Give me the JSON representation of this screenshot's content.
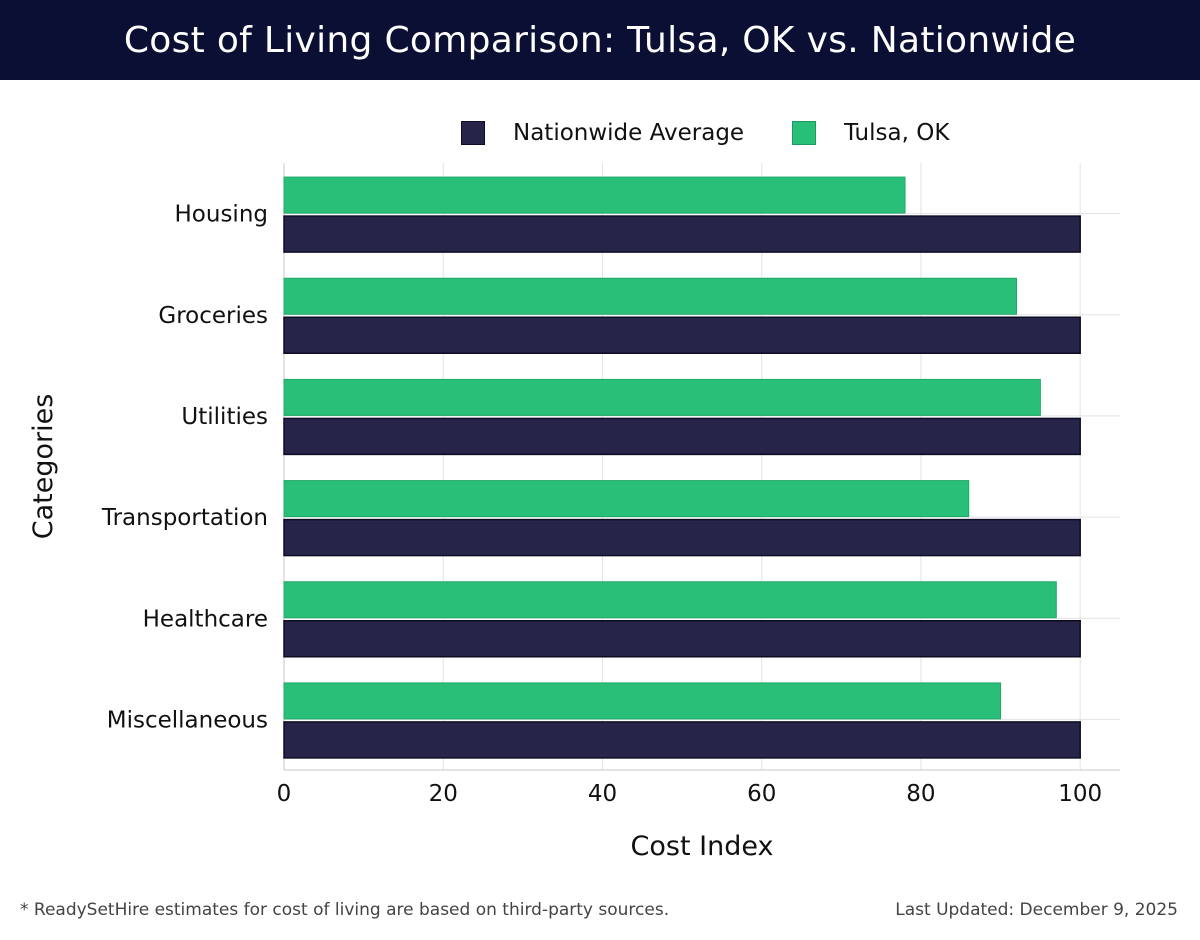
{
  "header": {
    "title": "Cost of Living Comparison: Tulsa, OK vs. Nationwide"
  },
  "chart_data": {
    "type": "bar",
    "orientation": "horizontal",
    "categories": [
      "Housing",
      "Groceries",
      "Utilities",
      "Transportation",
      "Healthcare",
      "Miscellaneous"
    ],
    "series": [
      {
        "name": "Nationwide Average",
        "values": [
          100,
          100,
          100,
          100,
          100,
          100
        ],
        "color": "#27244a"
      },
      {
        "name": "Tulsa, OK",
        "values": [
          78,
          92,
          95,
          86,
          97,
          90
        ],
        "color": "#2abf78"
      }
    ],
    "xlabel": "Cost Index",
    "ylabel": "Categories",
    "xlim": [
      0,
      105
    ],
    "xticks": [
      "0",
      "20",
      "40",
      "60",
      "80",
      "100"
    ],
    "grid": true,
    "legend_position": "top"
  },
  "footer": {
    "note": "* ReadySetHire estimates for cost of living are based on third-party sources.",
    "updated": "Last Updated: December 9, 2025"
  }
}
